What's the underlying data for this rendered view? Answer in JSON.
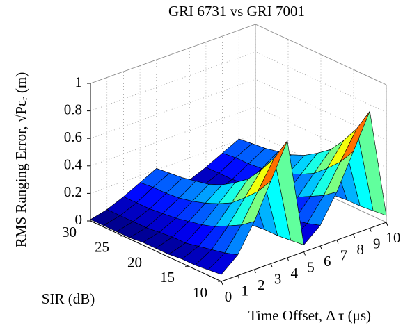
{
  "chart_data": {
    "type": "surface",
    "title": "GRI 6731 vs GRI 7001",
    "xlabel": "Time Offset, Δ τ (μs)",
    "ylabel": "SIR (dB)",
    "zlabel": "RMS Ranging Error,  √Pεᵣ (m)",
    "x": [
      0,
      1,
      2,
      3,
      4,
      5,
      6,
      7,
      8,
      9,
      10
    ],
    "y": [
      10,
      12,
      14,
      16,
      18,
      20,
      22,
      24,
      26,
      28,
      30
    ],
    "z": [
      [
        0.05,
        0.15,
        0.35,
        0.6,
        0.85,
        0.05,
        0.15,
        0.35,
        0.6,
        0.85,
        0.05
      ],
      [
        0.04,
        0.12,
        0.28,
        0.48,
        0.68,
        0.04,
        0.12,
        0.28,
        0.48,
        0.68,
        0.04
      ],
      [
        0.03,
        0.1,
        0.23,
        0.39,
        0.55,
        0.03,
        0.1,
        0.23,
        0.39,
        0.55,
        0.03
      ],
      [
        0.03,
        0.08,
        0.18,
        0.31,
        0.44,
        0.03,
        0.08,
        0.18,
        0.31,
        0.44,
        0.03
      ],
      [
        0.02,
        0.06,
        0.15,
        0.26,
        0.37,
        0.02,
        0.06,
        0.15,
        0.26,
        0.37,
        0.02
      ],
      [
        0.02,
        0.06,
        0.13,
        0.22,
        0.31,
        0.02,
        0.06,
        0.13,
        0.22,
        0.31,
        0.02
      ],
      [
        0.02,
        0.05,
        0.11,
        0.19,
        0.27,
        0.02,
        0.05,
        0.11,
        0.19,
        0.27,
        0.02
      ],
      [
        0.01,
        0.04,
        0.1,
        0.17,
        0.25,
        0.01,
        0.04,
        0.1,
        0.17,
        0.25,
        0.01
      ],
      [
        0.01,
        0.04,
        0.09,
        0.16,
        0.23,
        0.01,
        0.04,
        0.09,
        0.16,
        0.23,
        0.01
      ],
      [
        0.01,
        0.04,
        0.09,
        0.16,
        0.22,
        0.01,
        0.04,
        0.09,
        0.16,
        0.22,
        0.01
      ],
      [
        0.01,
        0.04,
        0.09,
        0.15,
        0.21,
        0.01,
        0.04,
        0.09,
        0.15,
        0.21,
        0.01
      ]
    ],
    "xlim": [
      0,
      10
    ],
    "ylim": [
      10,
      30
    ],
    "zlim": [
      0,
      1
    ],
    "xticks": [
      0,
      1,
      2,
      3,
      4,
      5,
      6,
      7,
      8,
      9,
      10
    ],
    "yticks": [
      10,
      15,
      20,
      25,
      30
    ],
    "zticks": [
      0,
      0.2,
      0.4,
      0.6,
      0.8,
      1
    ],
    "colormap": "jet",
    "grid": true
  }
}
